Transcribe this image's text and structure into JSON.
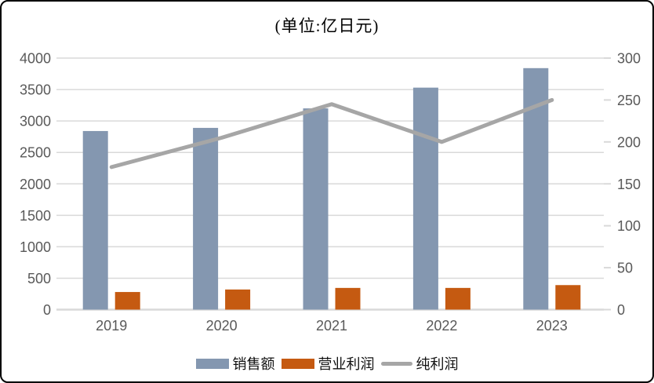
{
  "title": "(单位:亿日元)",
  "colors": {
    "sales_bar": "#8497B0",
    "operating_profit_bar": "#C55A11",
    "net_profit_line": "#A6A6A6",
    "gridline": "#D9D9D9",
    "axis_text": "#595959",
    "title_text": "#000000",
    "frame_border": "#000000"
  },
  "chart_data": {
    "type": "bar",
    "subtype": "combo-bar-line-dual-axis",
    "title": "(单位:亿日元)",
    "categories": [
      "2019",
      "2020",
      "2021",
      "2022",
      "2023"
    ],
    "series": [
      {
        "name": "销售额",
        "type": "bar",
        "axis": "left",
        "color": "#8497B0",
        "values": [
          2840,
          2890,
          3200,
          3530,
          3840
        ]
      },
      {
        "name": "营业利润",
        "type": "bar",
        "axis": "left",
        "color": "#C55A11",
        "values": [
          280,
          320,
          345,
          345,
          390
        ]
      },
      {
        "name": "纯利润",
        "type": "line",
        "axis": "right",
        "color": "#A6A6A6",
        "values": [
          170,
          205,
          245,
          200,
          250
        ]
      }
    ],
    "left_axis": {
      "min": 0,
      "max": 4000,
      "step": 500,
      "tick_labels": [
        "0",
        "500",
        "1000",
        "1500",
        "2000",
        "2500",
        "3000",
        "3500",
        "4000"
      ]
    },
    "right_axis": {
      "min": 0,
      "max": 300,
      "step": 50,
      "tick_labels": [
        "0",
        "50",
        "100",
        "150",
        "200",
        "250",
        "300"
      ]
    },
    "grid": true,
    "legend_position": "bottom-center"
  },
  "legend": {
    "items": [
      {
        "label": "销售额",
        "swatch": "bar"
      },
      {
        "label": "营业利润",
        "swatch": "bar"
      },
      {
        "label": "纯利润",
        "swatch": "line"
      }
    ]
  }
}
